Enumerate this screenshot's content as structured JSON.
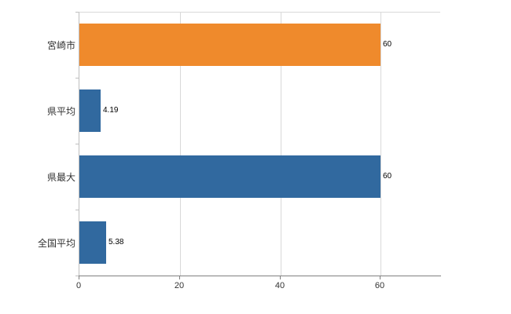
{
  "chart_data": {
    "type": "bar",
    "orientation": "horizontal",
    "title": "",
    "xlabel": "",
    "ylabel": "",
    "categories": [
      "宮崎市",
      "県平均",
      "県最大",
      "全国平均"
    ],
    "values": [
      60,
      4.19,
      60,
      5.38
    ],
    "value_labels": [
      "60",
      "4.19",
      "60",
      "5.38"
    ],
    "bar_colors": [
      "#ef8a2c",
      "#31699f",
      "#31699f",
      "#31699f"
    ],
    "x_ticks": [
      "0",
      "20",
      "40",
      "60"
    ],
    "x_tick_values": [
      0,
      20,
      40,
      60
    ],
    "xlim": [
      0,
      72
    ],
    "grid": true,
    "legend": "none"
  },
  "colors": {
    "orange_bar": "#ef8a2c",
    "blue_bar": "#31699f",
    "gridline": "#d9d9d9",
    "axis_line": "#808080",
    "text": "#333333"
  }
}
